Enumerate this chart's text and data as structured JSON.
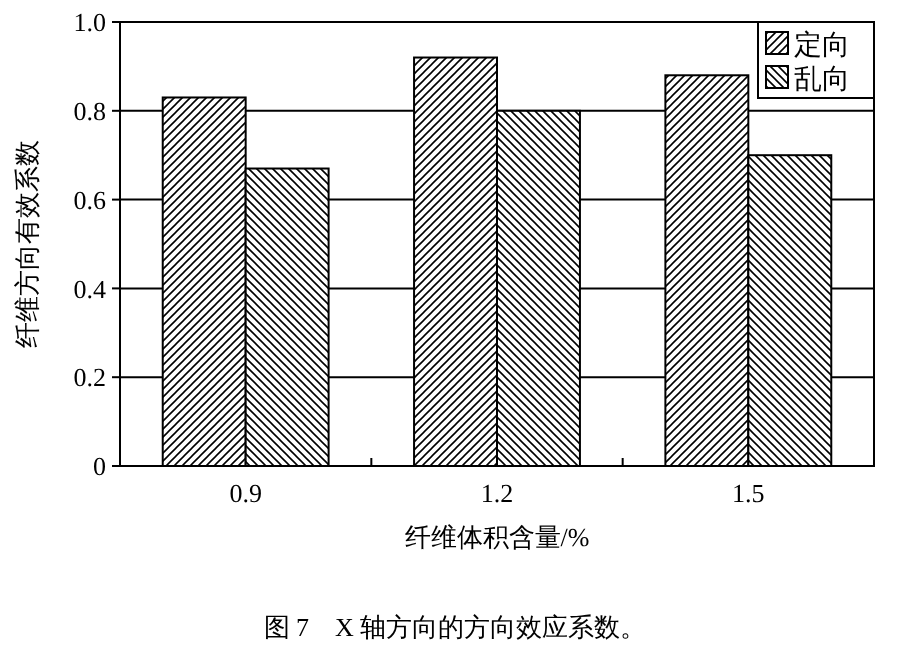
{
  "chart_data": {
    "type": "bar",
    "categories": [
      "0.9",
      "1.2",
      "1.5"
    ],
    "series": [
      {
        "name": "定向",
        "color": "#000000",
        "values": [
          0.83,
          0.92,
          0.88
        ]
      },
      {
        "name": "乱向",
        "color": "#000000",
        "values": [
          0.67,
          0.8,
          0.7
        ]
      }
    ],
    "xlabel": "纤维体积含量/%",
    "ylabel": "纤维方向有效系数",
    "ylim": [
      0,
      1
    ],
    "yticks": [
      0,
      0.2,
      0.4,
      0.6,
      0.8,
      {
        "value": 1,
        "label": "1.0"
      }
    ],
    "grid": "y",
    "legend": "top right",
    "annotations": [
      "图 7　X 轴方向的方向效应系数。"
    ]
  }
}
